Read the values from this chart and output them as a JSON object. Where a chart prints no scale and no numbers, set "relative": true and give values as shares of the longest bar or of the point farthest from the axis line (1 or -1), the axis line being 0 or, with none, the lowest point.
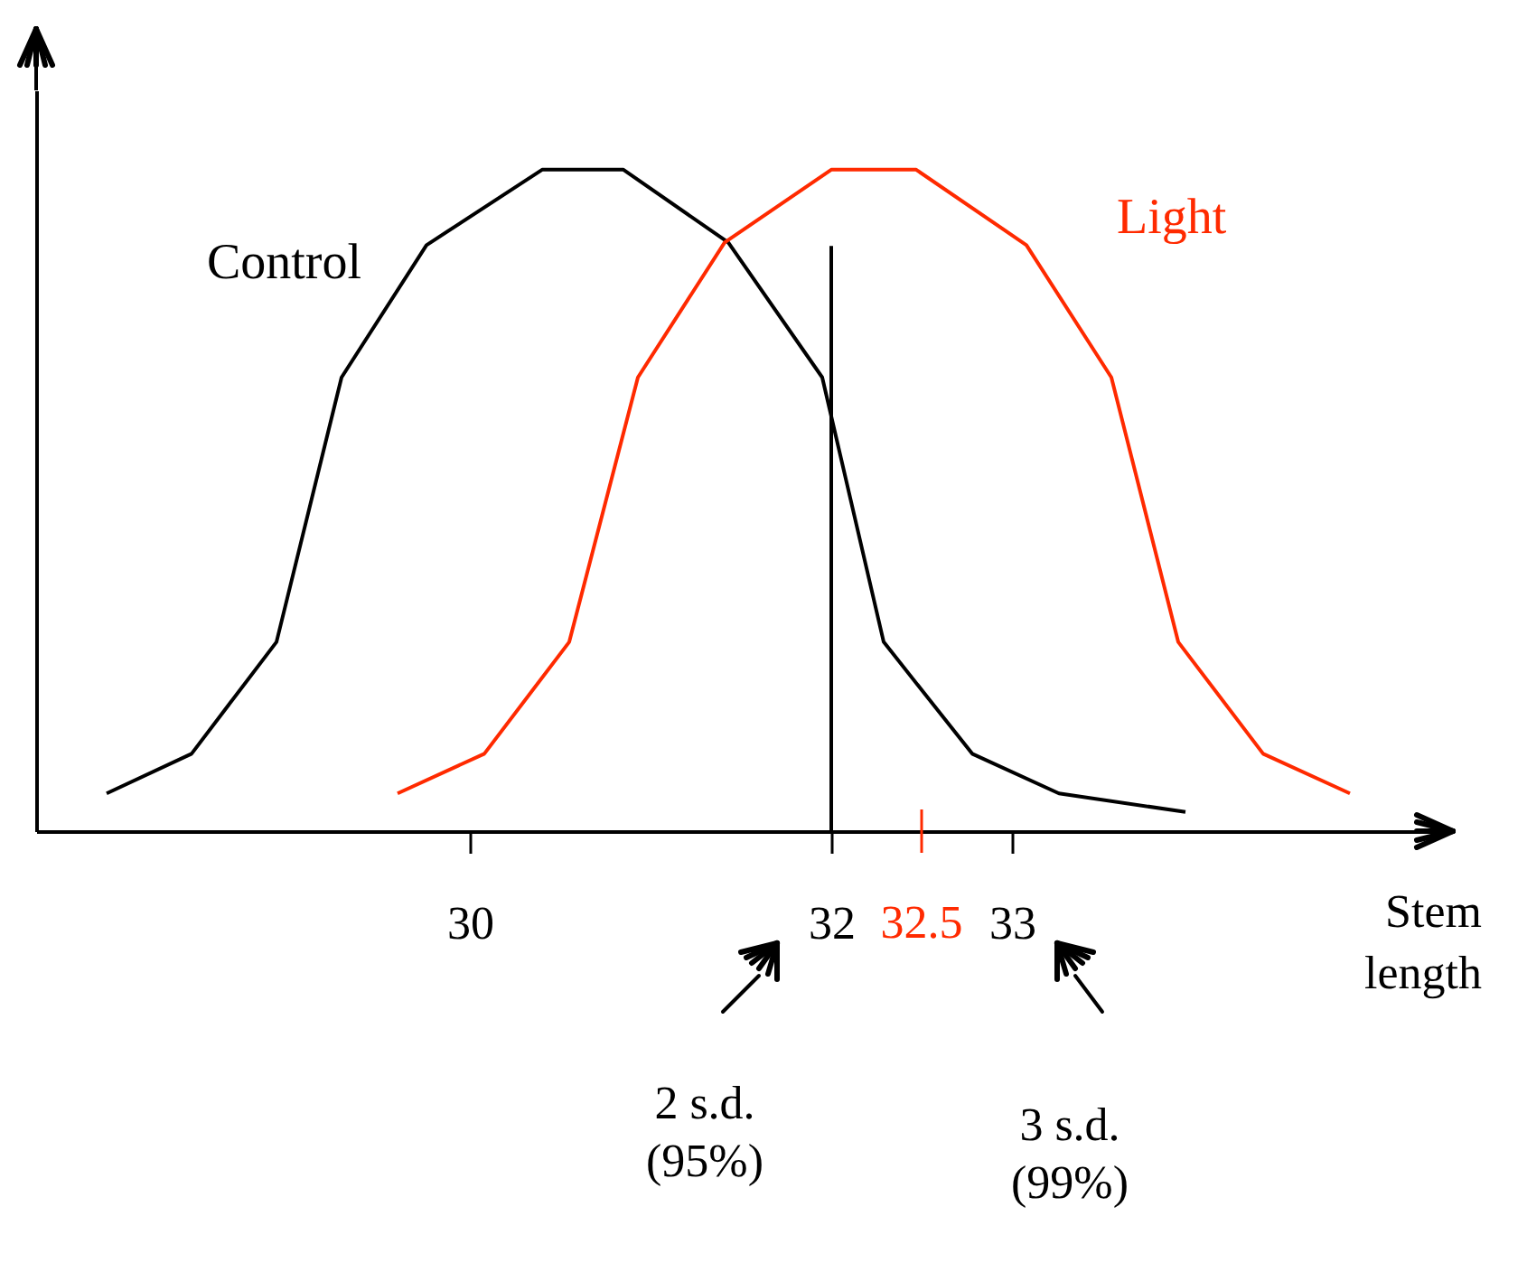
{
  "chart_data": {
    "type": "line",
    "relative": true,
    "xlabel": "Stem length",
    "xlim": [
      27.6,
      35.3
    ],
    "xticks": [
      30,
      32,
      33
    ],
    "tick_labels": "x",
    "grid": false,
    "legend": false,
    "marker": "none",
    "line_style": "solid",
    "series": [
      {
        "name": "Control",
        "color": "#000000",
        "x": [
          27.99,
          28.46,
          28.93,
          29.29,
          29.76,
          30.4,
          30.85,
          31.43,
          31.95,
          32.29,
          32.78,
          33.26,
          33.96
        ],
        "values": [
          0.057,
          0.117,
          0.286,
          0.686,
          0.886,
          1,
          1,
          0.89,
          0.686,
          0.286,
          0.117,
          0.057,
          0.029
        ]
      },
      {
        "name": "Light",
        "color": "#ff2a00",
        "x": [
          29.6,
          30.08,
          30.55,
          30.93,
          31.41,
          32.0,
          32.47,
          33.08,
          33.55,
          33.92,
          34.39,
          34.87
        ],
        "values": [
          0.057,
          0.117,
          0.286,
          0.686,
          0.89,
          1,
          1,
          0.886,
          0.686,
          0.286,
          0.117,
          0.057
        ]
      }
    ],
    "ref_lines": [
      {
        "axis": "x",
        "value": 32,
        "label": null,
        "color": "#000000"
      },
      {
        "axis": "x",
        "value": 32.5,
        "label": "32.5",
        "color": "#ff2a00"
      }
    ],
    "annotations": [
      "2 s.d.\n(95%)",
      "3 s.d.\n(99%)"
    ]
  }
}
